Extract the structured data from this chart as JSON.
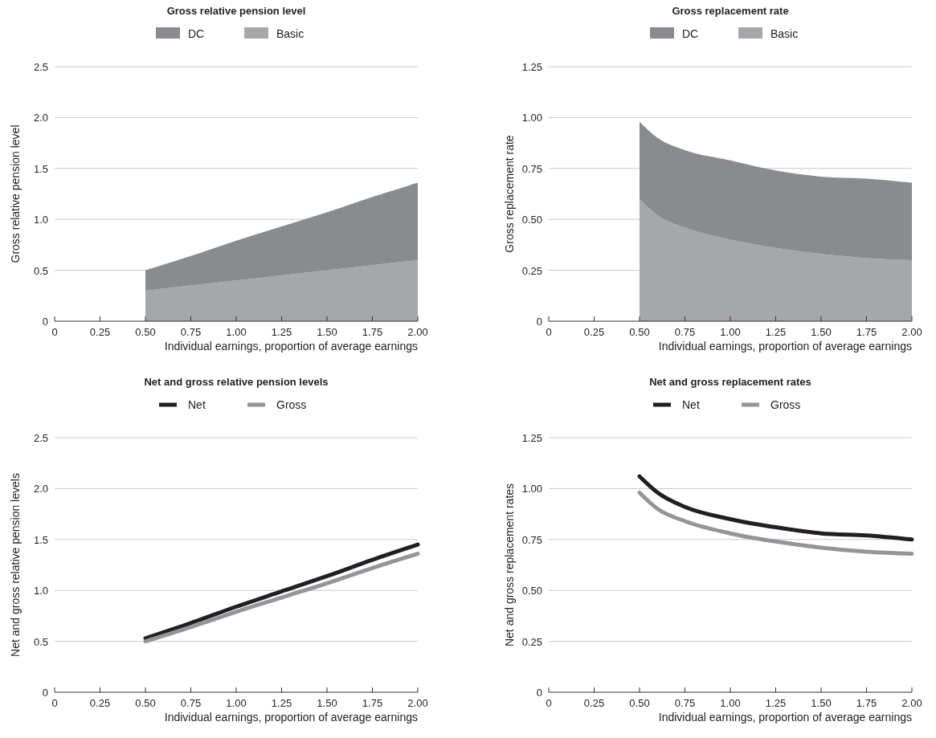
{
  "chart_data": [
    {
      "type": "area",
      "stacked": true,
      "title": "Gross relative pension level",
      "xlabel": "Individual earnings, proportion of average earnings",
      "ylabel": "Gross relative pension level",
      "x": [
        0.5,
        0.75,
        1.0,
        1.25,
        1.5,
        1.75,
        2.0
      ],
      "series": [
        {
          "name": "Basic",
          "color": "#a6a7aa",
          "values": [
            0.3,
            0.35,
            0.4,
            0.45,
            0.5,
            0.55,
            0.6
          ]
        },
        {
          "name": "DC",
          "color": "#8a8b8f",
          "values": [
            0.2,
            0.29,
            0.39,
            0.48,
            0.57,
            0.67,
            0.76
          ]
        }
      ],
      "xlim": [
        0,
        2
      ],
      "xticks": [
        0,
        0.25,
        {
          "value": 0.5,
          "label": "0.50"
        },
        0.75,
        {
          "value": 1,
          "label": "1.00"
        },
        1.25,
        {
          "value": 1.5,
          "label": "1.50"
        },
        1.75,
        {
          "value": 2,
          "label": "2.00"
        }
      ],
      "ylim": [
        0,
        2.5
      ],
      "yticks": [
        0,
        0.5,
        {
          "value": 1,
          "label": "1.0"
        },
        1.5,
        {
          "value": 2,
          "label": "2.0"
        },
        2.5
      ],
      "grid": "y",
      "legend": "top"
    },
    {
      "type": "area",
      "stacked": true,
      "title": "Gross replacement rate",
      "xlabel": "Individual earnings, proportion of average earnings",
      "ylabel": "Gross replacement rate",
      "x": [
        0.5,
        0.6,
        0.75,
        1.0,
        1.25,
        1.5,
        1.75,
        2.0
      ],
      "series": [
        {
          "name": "Basic",
          "color": "#a6a7aa",
          "values": [
            0.6,
            0.52,
            0.46,
            0.4,
            0.36,
            0.33,
            0.31,
            0.3
          ]
        },
        {
          "name": "DC",
          "color": "#8a8b8f",
          "values": [
            0.38,
            0.38,
            0.38,
            0.39,
            0.38,
            0.38,
            0.39,
            0.38
          ]
        }
      ],
      "xlim": [
        0,
        2
      ],
      "xticks": [
        0,
        0.25,
        {
          "value": 0.5,
          "label": "0.50"
        },
        0.75,
        {
          "value": 1,
          "label": "1.00"
        },
        1.25,
        {
          "value": 1.5,
          "label": "1.50"
        },
        1.75,
        {
          "value": 2,
          "label": "2.00"
        }
      ],
      "ylim": [
        0,
        1.25
      ],
      "yticks": [
        0,
        0.25,
        {
          "value": 0.5,
          "label": "0.50"
        },
        0.75,
        {
          "value": 1,
          "label": "1.00"
        },
        1.25
      ],
      "grid": "y",
      "legend": "top"
    },
    {
      "type": "line",
      "title": "Net and gross relative pension levels",
      "xlabel": "Individual earnings, proportion of average earnings",
      "ylabel": "Net and gross relative pension levels",
      "x": [
        0.5,
        0.75,
        1.0,
        1.25,
        1.5,
        1.75,
        2.0
      ],
      "series": [
        {
          "name": "Net",
          "color": "#231f20",
          "values": [
            0.53,
            0.68,
            0.84,
            0.99,
            1.14,
            1.3,
            1.45
          ]
        },
        {
          "name": "Gross",
          "color": "#939598",
          "values": [
            0.5,
            0.64,
            0.79,
            0.93,
            1.07,
            1.22,
            1.36
          ]
        }
      ],
      "xlim": [
        0,
        2
      ],
      "xticks": [
        0,
        0.25,
        {
          "value": 0.5,
          "label": "0.50"
        },
        0.75,
        {
          "value": 1,
          "label": "1.00"
        },
        1.25,
        {
          "value": 1.5,
          "label": "1.50"
        },
        1.75,
        {
          "value": 2,
          "label": "2.00"
        }
      ],
      "ylim": [
        0,
        2.5
      ],
      "yticks": [
        0,
        0.5,
        {
          "value": 1,
          "label": "1.0"
        },
        1.5,
        {
          "value": 2,
          "label": "2.0"
        },
        2.5
      ],
      "grid": "y",
      "legend": "top"
    },
    {
      "type": "line",
      "title": "Net and gross replacement rates",
      "xlabel": "Individual earnings, proportion of average earnings",
      "ylabel": "Net and gross replacement rates",
      "x": [
        0.5,
        0.6,
        0.75,
        1.0,
        1.25,
        1.5,
        1.75,
        2.0
      ],
      "series": [
        {
          "name": "Net",
          "color": "#231f20",
          "values": [
            1.06,
            0.98,
            0.91,
            0.85,
            0.81,
            0.78,
            0.77,
            0.75
          ]
        },
        {
          "name": "Gross",
          "color": "#939598",
          "values": [
            0.98,
            0.9,
            0.84,
            0.78,
            0.74,
            0.71,
            0.69,
            0.68
          ]
        }
      ],
      "xlim": [
        0,
        2
      ],
      "xticks": [
        0,
        0.25,
        {
          "value": 0.5,
          "label": "0.50"
        },
        0.75,
        {
          "value": 1,
          "label": "1.00"
        },
        1.25,
        {
          "value": 1.5,
          "label": "1.50"
        },
        1.75,
        {
          "value": 2,
          "label": "2.00"
        }
      ],
      "ylim": [
        0,
        1.25
      ],
      "yticks": [
        0,
        0.25,
        {
          "value": 0.5,
          "label": "0.50"
        },
        0.75,
        {
          "value": 1,
          "label": "1.00"
        },
        1.25
      ],
      "grid": "y",
      "legend": "top"
    }
  ]
}
